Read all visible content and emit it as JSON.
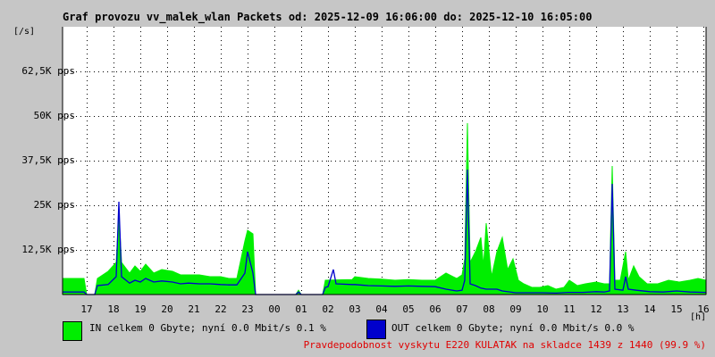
{
  "title": "Graf provozu vv_malek_wlan Packets od: 2025-12-09 16:06:00 do: 2025-12-10 16:05:00",
  "legend": {
    "in_label": "IN celkem 0 Gbyte; nyní   0.0 Mbit/s 0.1 %",
    "out_label": "OUT celkem 0 Gbyte; nyní   0.0 Mbit/s 0.0 %"
  },
  "footer": "Pravdepodobnost vyskytu E220 KULATAK na skladce 1439 z 1440 (99.9 %)",
  "chart_data": {
    "type": "area",
    "y_unit_label": "[/s]",
    "x_unit_label": "[h]",
    "ylim": [
      0,
      75000
    ],
    "yticks": [
      {
        "value": 12500,
        "label": "12,5K pps"
      },
      {
        "value": 25000,
        "label": "25K pps"
      },
      {
        "value": 37500,
        "label": "37,5K pps"
      },
      {
        "value": 50000,
        "label": "50K pps"
      },
      {
        "value": 62500,
        "label": "62,5K pps"
      }
    ],
    "xlim": [
      16.1,
      40.1
    ],
    "xticks": [
      {
        "value": 17,
        "label": "17"
      },
      {
        "value": 18,
        "label": "18"
      },
      {
        "value": 19,
        "label": "19"
      },
      {
        "value": 20,
        "label": "20"
      },
      {
        "value": 21,
        "label": "21"
      },
      {
        "value": 22,
        "label": "22"
      },
      {
        "value": 23,
        "label": "23"
      },
      {
        "value": 24,
        "label": "00"
      },
      {
        "value": 25,
        "label": "01"
      },
      {
        "value": 26,
        "label": "02"
      },
      {
        "value": 27,
        "label": "03"
      },
      {
        "value": 28,
        "label": "04"
      },
      {
        "value": 29,
        "label": "05"
      },
      {
        "value": 30,
        "label": "06"
      },
      {
        "value": 31,
        "label": "07"
      },
      {
        "value": 32,
        "label": "08"
      },
      {
        "value": 33,
        "label": "09"
      },
      {
        "value": 34,
        "label": "10"
      },
      {
        "value": 35,
        "label": "11"
      },
      {
        "value": 36,
        "label": "12"
      },
      {
        "value": 37,
        "label": "13"
      },
      {
        "value": 38,
        "label": "14"
      },
      {
        "value": 39,
        "label": "15"
      },
      {
        "value": 40,
        "label": "16"
      }
    ],
    "grid": true,
    "series": [
      {
        "name": "IN",
        "color": "#00ee00",
        "style": "filled",
        "points": [
          [
            16.1,
            4500
          ],
          [
            16.9,
            4500
          ],
          [
            17.0,
            0
          ],
          [
            17.3,
            0
          ],
          [
            17.4,
            4500
          ],
          [
            17.8,
            6500
          ],
          [
            18.1,
            9000
          ],
          [
            18.2,
            23000
          ],
          [
            18.3,
            9000
          ],
          [
            18.6,
            6000
          ],
          [
            18.8,
            8000
          ],
          [
            19.0,
            6500
          ],
          [
            19.2,
            8500
          ],
          [
            19.5,
            6000
          ],
          [
            19.8,
            7000
          ],
          [
            20.2,
            6500
          ],
          [
            20.5,
            5500
          ],
          [
            20.8,
            5500
          ],
          [
            21.2,
            5500
          ],
          [
            21.6,
            5000
          ],
          [
            22.0,
            5000
          ],
          [
            22.3,
            4500
          ],
          [
            22.6,
            4500
          ],
          [
            22.9,
            15000
          ],
          [
            23.0,
            18000
          ],
          [
            23.2,
            17000
          ],
          [
            23.3,
            0
          ],
          [
            24.8,
            0
          ],
          [
            24.9,
            1200
          ],
          [
            25.0,
            0
          ],
          [
            25.8,
            0
          ],
          [
            25.9,
            4000
          ],
          [
            26.9,
            4200
          ],
          [
            27.0,
            5000
          ],
          [
            27.5,
            4500
          ],
          [
            28.0,
            4300
          ],
          [
            28.5,
            4000
          ],
          [
            29.0,
            4200
          ],
          [
            29.5,
            4000
          ],
          [
            30.0,
            4000
          ],
          [
            30.4,
            6000
          ],
          [
            30.8,
            4500
          ],
          [
            31.0,
            5500
          ],
          [
            31.1,
            10000
          ],
          [
            31.2,
            48000
          ],
          [
            31.3,
            9000
          ],
          [
            31.5,
            12000
          ],
          [
            31.7,
            16000
          ],
          [
            31.8,
            8000
          ],
          [
            31.9,
            20000
          ],
          [
            32.1,
            5000
          ],
          [
            32.3,
            12000
          ],
          [
            32.5,
            16000
          ],
          [
            32.7,
            7000
          ],
          [
            32.9,
            10000
          ],
          [
            33.1,
            4000
          ],
          [
            33.3,
            3000
          ],
          [
            33.6,
            2000
          ],
          [
            33.9,
            2000
          ],
          [
            34.2,
            2500
          ],
          [
            34.5,
            1500
          ],
          [
            34.8,
            2000
          ],
          [
            35.0,
            4000
          ],
          [
            35.3,
            2500
          ],
          [
            35.6,
            3000
          ],
          [
            36.0,
            3500
          ],
          [
            36.3,
            3000
          ],
          [
            36.5,
            3000
          ],
          [
            36.6,
            36000
          ],
          [
            36.7,
            4000
          ],
          [
            36.9,
            4000
          ],
          [
            37.1,
            12000
          ],
          [
            37.2,
            4000
          ],
          [
            37.4,
            8000
          ],
          [
            37.6,
            5000
          ],
          [
            37.9,
            3000
          ],
          [
            38.3,
            3000
          ],
          [
            38.7,
            4000
          ],
          [
            39.1,
            3500
          ],
          [
            39.5,
            4000
          ],
          [
            39.8,
            4500
          ],
          [
            40.1,
            4000
          ]
        ]
      },
      {
        "name": "OUT",
        "color": "#0000cc",
        "style": "line",
        "points": [
          [
            16.1,
            700
          ],
          [
            16.9,
            700
          ],
          [
            17.0,
            0
          ],
          [
            17.3,
            0
          ],
          [
            17.4,
            2500
          ],
          [
            17.8,
            2800
          ],
          [
            18.1,
            5000
          ],
          [
            18.2,
            26000
          ],
          [
            18.3,
            5000
          ],
          [
            18.6,
            3200
          ],
          [
            18.8,
            4000
          ],
          [
            19.0,
            3500
          ],
          [
            19.2,
            4500
          ],
          [
            19.5,
            3500
          ],
          [
            19.8,
            3800
          ],
          [
            20.2,
            3500
          ],
          [
            20.5,
            3000
          ],
          [
            20.8,
            3200
          ],
          [
            21.2,
            3000
          ],
          [
            21.6,
            3000
          ],
          [
            22.0,
            2800
          ],
          [
            22.3,
            2700
          ],
          [
            22.6,
            2700
          ],
          [
            22.9,
            6000
          ],
          [
            23.0,
            12000
          ],
          [
            23.2,
            6000
          ],
          [
            23.3,
            0
          ],
          [
            24.8,
            0
          ],
          [
            24.9,
            700
          ],
          [
            25.0,
            0
          ],
          [
            25.8,
            0
          ],
          [
            25.9,
            2000
          ],
          [
            26.0,
            2200
          ],
          [
            26.2,
            7000
          ],
          [
            26.3,
            3000
          ],
          [
            26.9,
            2800
          ],
          [
            27.0,
            2800
          ],
          [
            27.5,
            2500
          ],
          [
            28.0,
            2400
          ],
          [
            28.5,
            2300
          ],
          [
            29.0,
            2400
          ],
          [
            29.5,
            2300
          ],
          [
            30.0,
            2200
          ],
          [
            30.4,
            1500
          ],
          [
            30.8,
            1000
          ],
          [
            31.0,
            1200
          ],
          [
            31.1,
            4000
          ],
          [
            31.2,
            35000
          ],
          [
            31.3,
            3000
          ],
          [
            31.5,
            2500
          ],
          [
            31.7,
            1800
          ],
          [
            31.9,
            1500
          ],
          [
            32.3,
            1500
          ],
          [
            32.5,
            1000
          ],
          [
            33.0,
            500
          ],
          [
            33.5,
            500
          ],
          [
            34.0,
            500
          ],
          [
            34.5,
            400
          ],
          [
            35.0,
            600
          ],
          [
            35.5,
            600
          ],
          [
            36.0,
            800
          ],
          [
            36.3,
            700
          ],
          [
            36.5,
            1000
          ],
          [
            36.6,
            31000
          ],
          [
            36.7,
            1500
          ],
          [
            37.0,
            1200
          ],
          [
            37.1,
            5000
          ],
          [
            37.2,
            1500
          ],
          [
            37.5,
            1200
          ],
          [
            38.0,
            800
          ],
          [
            38.5,
            700
          ],
          [
            39.0,
            1000
          ],
          [
            39.5,
            700
          ],
          [
            40.1,
            600
          ]
        ]
      }
    ]
  }
}
